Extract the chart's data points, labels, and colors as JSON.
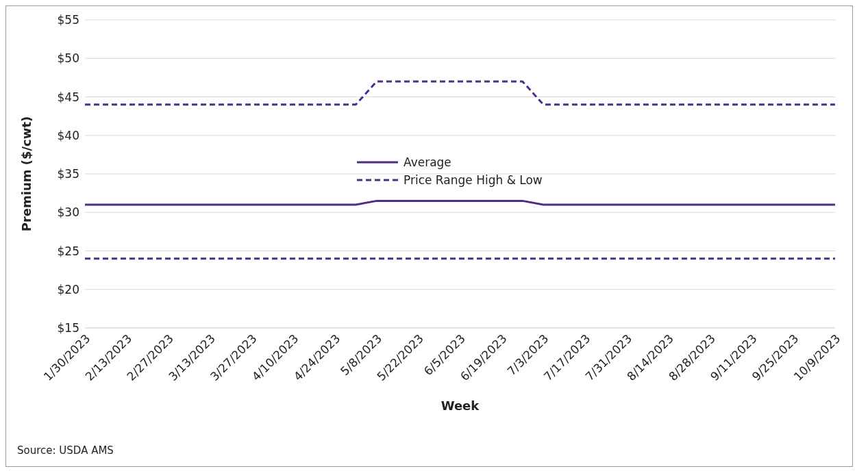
{
  "chart_data": {
    "type": "line",
    "xlabel": "Week",
    "ylabel": "Premium ($/cwt)",
    "categories": [
      "1/30/2023",
      null,
      "2/13/2023",
      null,
      "2/27/2023",
      null,
      "3/13/2023",
      null,
      "3/27/2023",
      null,
      "4/10/2023",
      null,
      "4/24/2023",
      null,
      "5/8/2023",
      null,
      "5/22/2023",
      null,
      "6/5/2023",
      null,
      "6/19/2023",
      null,
      "7/3/2023",
      null,
      "7/17/2023",
      null,
      "7/31/2023",
      null,
      "8/14/2023",
      null,
      "8/28/2023",
      null,
      "9/11/2023",
      null,
      "9/25/2023",
      null,
      "10/9/2023"
    ],
    "series": [
      {
        "name": "Average",
        "color": "#4f2d8a",
        "line_style": "solid",
        "values": [
          31,
          31,
          31,
          31,
          31,
          31,
          31,
          31,
          31,
          31,
          31,
          31,
          31,
          31,
          31.5,
          31.5,
          31.5,
          31.5,
          31.5,
          31.5,
          31.5,
          31.5,
          31,
          31,
          31,
          31,
          31,
          31,
          31,
          31,
          31,
          31,
          31,
          31,
          31,
          31,
          31
        ]
      },
      {
        "name": "Price Range High & Low",
        "color": "#4f2d8a",
        "line_style": "dashed",
        "values": [
          44,
          44,
          44,
          44,
          44,
          44,
          44,
          44,
          44,
          44,
          44,
          44,
          44,
          44,
          47,
          47,
          47,
          47,
          47,
          47,
          47,
          47,
          44,
          44,
          44,
          44,
          44,
          44,
          44,
          44,
          44,
          44,
          44,
          44,
          44,
          44,
          44
        ]
      },
      {
        "color": "#4f2d8a",
        "line_style": "dashed",
        "values": [
          24,
          24,
          24,
          24,
          24,
          24,
          24,
          24,
          24,
          24,
          24,
          24,
          24,
          24,
          24,
          24,
          24,
          24,
          24,
          24,
          24,
          24,
          24,
          24,
          24,
          24,
          24,
          24,
          24,
          24,
          24,
          24,
          24,
          24,
          24,
          24,
          24
        ]
      }
    ],
    "ylim": [
      15,
      55
    ],
    "yticks": [
      {
        "value": 15,
        "label": "$15"
      },
      {
        "value": 20,
        "label": "$20"
      },
      {
        "value": 25,
        "label": "$25"
      },
      {
        "value": 30,
        "label": "$30"
      },
      {
        "value": 35,
        "label": "$35"
      },
      {
        "value": 40,
        "label": "$40"
      },
      {
        "value": 45,
        "label": "$45"
      },
      {
        "value": 50,
        "label": "$50"
      },
      {
        "value": 55,
        "label": "$55"
      }
    ],
    "grid": "y",
    "legend": "center",
    "marker": "none",
    "annotations": [
      "Source: USDA AMS"
    ]
  }
}
